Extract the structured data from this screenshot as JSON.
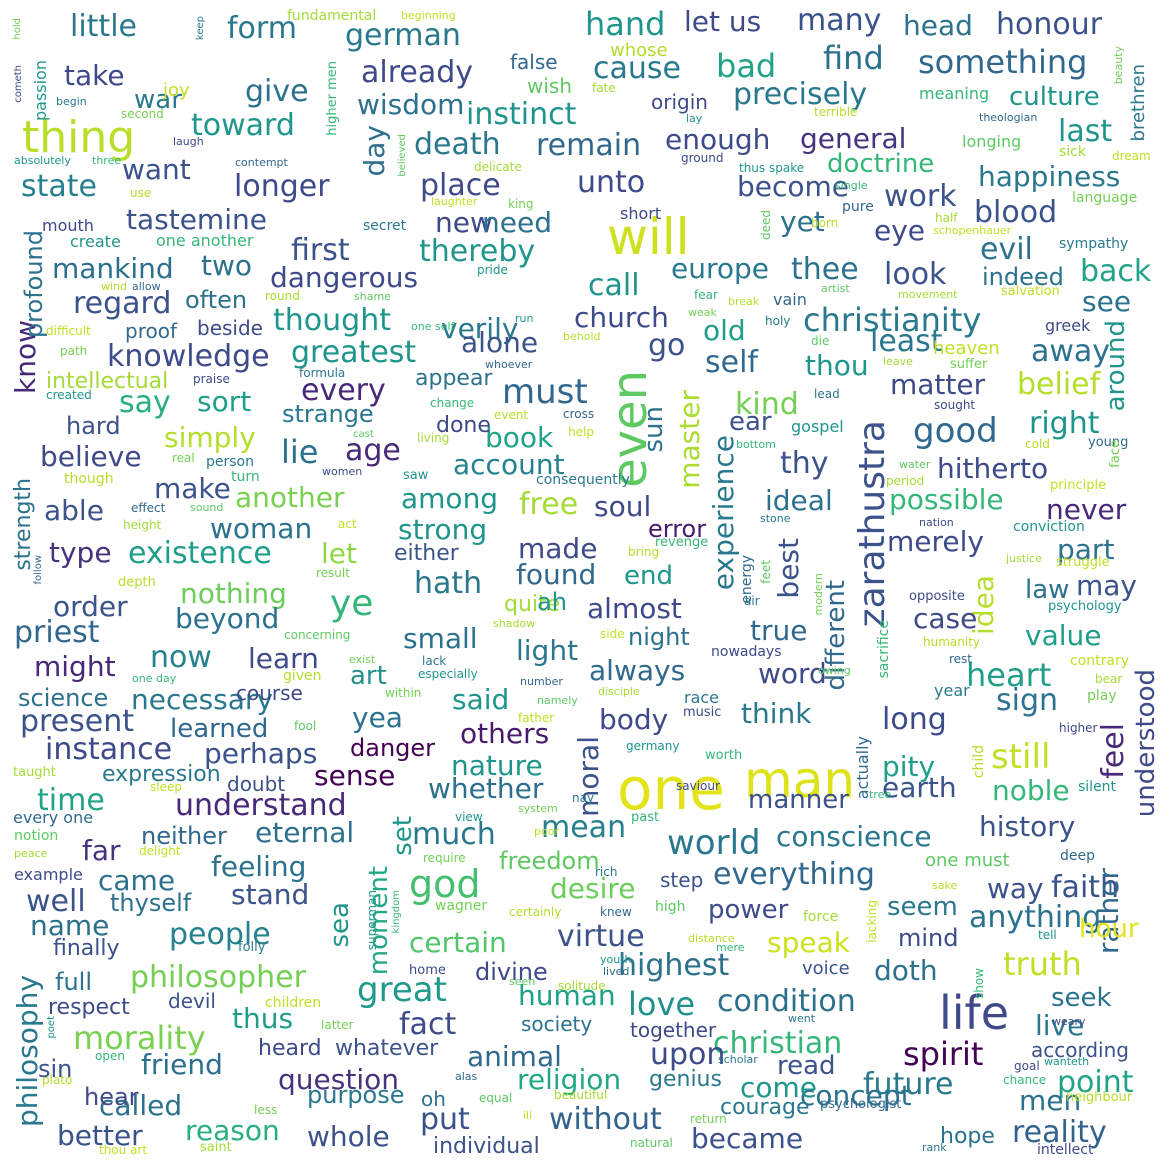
{
  "words": [
    {
      "text": "one",
      "color": "#e3e418"
    },
    {
      "text": "man",
      "color": "#dde318"
    },
    {
      "text": "even",
      "color": "#5ec962"
    },
    {
      "text": "will",
      "color": "#cde11d"
    },
    {
      "text": "zarathustra",
      "color": "#3b528b"
    },
    {
      "text": "life",
      "color": "#3e4a89"
    },
    {
      "text": "thing",
      "color": "#b8de29"
    },
    {
      "text": "ye",
      "color": "#35b779"
    },
    {
      "text": "god",
      "color": "#44bf70"
    },
    {
      "text": "must",
      "color": "#31688e"
    },
    {
      "text": "still",
      "color": "#c2df23"
    },
    {
      "text": "great",
      "color": "#1f9a8a"
    },
    {
      "text": "highest",
      "color": "#2c728e"
    },
    {
      "text": "world",
      "color": "#2a788e"
    },
    {
      "text": "philosopher",
      "color": "#73d055"
    },
    {
      "text": "christianity",
      "color": "#2a788e"
    },
    {
      "text": "greatest",
      "color": "#1f968b"
    },
    {
      "text": "spirit",
      "color": "#440154"
    },
    {
      "text": "love",
      "color": "#21918c"
    },
    {
      "text": "good",
      "color": "#31688e"
    },
    {
      "text": "heart",
      "color": "#1f9e89"
    },
    {
      "text": "everything",
      "color": "#31688e"
    },
    {
      "text": "mean",
      "color": "#27808e"
    },
    {
      "text": "condition",
      "color": "#2d708e"
    },
    {
      "text": "truth",
      "color": "#c0df25"
    },
    {
      "text": "nature",
      "color": "#1f968b"
    },
    {
      "text": "morality",
      "color": "#7ad151"
    },
    {
      "text": "people",
      "color": "#26828e"
    },
    {
      "text": "time",
      "color": "#20a386"
    },
    {
      "text": "understand",
      "color": "#482878"
    },
    {
      "text": "instance",
      "color": "#3e4a89"
    },
    {
      "text": "existence",
      "color": "#1f9e89"
    },
    {
      "text": "present",
      "color": "#3b528b"
    },
    {
      "text": "knowledge",
      "color": "#3e4a89"
    },
    {
      "text": "philosophy",
      "color": "#2a788e"
    },
    {
      "text": "question",
      "color": "#46337e"
    },
    {
      "text": "religion",
      "color": "#22a884"
    },
    {
      "text": "christian",
      "color": "#35b779"
    },
    {
      "text": "reality",
      "color": "#33638d"
    },
    {
      "text": "whole",
      "color": "#3b528b"
    },
    {
      "text": "better",
      "color": "#3b528b"
    },
    {
      "text": "without",
      "color": "#33638d"
    },
    {
      "text": "became",
      "color": "#3b528b"
    },
    {
      "text": "concept",
      "color": "#2c728e"
    },
    {
      "text": "future",
      "color": "#2a788e"
    },
    {
      "text": "point",
      "color": "#20a386"
    },
    {
      "text": "fact",
      "color": "#3e4a89"
    },
    {
      "text": "upon",
      "color": "#3e4a89"
    },
    {
      "text": "animal",
      "color": "#31688e"
    },
    {
      "text": "friend",
      "color": "#2d708e"
    },
    {
      "text": "called",
      "color": "#2c728e"
    },
    {
      "text": "reason",
      "color": "#29af7f"
    },
    {
      "text": "put",
      "color": "#3b528b"
    },
    {
      "text": "thus",
      "color": "#1f9e89"
    },
    {
      "text": "human",
      "color": "#1fa188"
    },
    {
      "text": "virtue",
      "color": "#3b528b"
    },
    {
      "text": "certain",
      "color": "#52c569"
    },
    {
      "text": "speak",
      "color": "#cde11d"
    },
    {
      "text": "power",
      "color": "#3e4a89"
    },
    {
      "text": "desire",
      "color": "#6ccd5a"
    },
    {
      "text": "faith",
      "color": "#3b528b"
    },
    {
      "text": "anything",
      "color": "#2c728e"
    },
    {
      "text": "seem",
      "color": "#2a788e"
    },
    {
      "text": "history",
      "color": "#3b528b"
    },
    {
      "text": "conscience",
      "color": "#2a788e"
    },
    {
      "text": "earth",
      "color": "#3b528b"
    },
    {
      "text": "noble",
      "color": "#35b779"
    },
    {
      "text": "pity",
      "color": "#1f9e89"
    },
    {
      "text": "think",
      "color": "#2a788e"
    },
    {
      "text": "word",
      "color": "#3e4a89"
    },
    {
      "text": "always",
      "color": "#31688e"
    },
    {
      "text": "long",
      "color": "#3e4a89"
    },
    {
      "text": "sign",
      "color": "#2c728e"
    },
    {
      "text": "value",
      "color": "#1f9e89"
    },
    {
      "text": "feel",
      "color": "#482878"
    },
    {
      "text": "understood",
      "color": "#3e4a89"
    },
    {
      "text": "rather",
      "color": "#31688e"
    },
    {
      "text": "idea",
      "color": "#b5de2b"
    },
    {
      "text": "case",
      "color": "#3e4a89"
    },
    {
      "text": "law",
      "color": "#2c728e"
    },
    {
      "text": "may",
      "color": "#3b528b"
    },
    {
      "text": "possible",
      "color": "#35b779"
    },
    {
      "text": "merely",
      "color": "#3e4a89"
    },
    {
      "text": "part",
      "color": "#2c728e"
    },
    {
      "text": "never",
      "color": "#482878"
    },
    {
      "text": "hitherto",
      "color": "#3e4a89"
    },
    {
      "text": "right",
      "color": "#1f968b"
    },
    {
      "text": "thy",
      "color": "#3b528b"
    },
    {
      "text": "ideal",
      "color": "#2c728e"
    },
    {
      "text": "experience",
      "color": "#2a788e"
    },
    {
      "text": "best",
      "color": "#3b528b"
    },
    {
      "text": "true",
      "color": "#31688e"
    },
    {
      "text": "different",
      "color": "#31688e"
    },
    {
      "text": "master",
      "color": "#addc30"
    },
    {
      "text": "moral",
      "color": "#3b528b"
    },
    {
      "text": "body",
      "color": "#3e4a89"
    },
    {
      "text": "others",
      "color": "#481b6d"
    },
    {
      "text": "whether",
      "color": "#2d708e"
    },
    {
      "text": "much",
      "color": "#2a788e"
    },
    {
      "text": "freedom",
      "color": "#5ec962"
    },
    {
      "text": "manner",
      "color": "#3b528b"
    },
    {
      "text": "sense",
      "color": "#440154"
    },
    {
      "text": "yea",
      "color": "#2c728e"
    },
    {
      "text": "said",
      "color": "#1f968b"
    },
    {
      "text": "art",
      "color": "#21918c"
    },
    {
      "text": "learn",
      "color": "#3e4a89"
    },
    {
      "text": "light",
      "color": "#2a788e"
    },
    {
      "text": "small",
      "color": "#2c728e"
    },
    {
      "text": "found",
      "color": "#31688e"
    },
    {
      "text": "made",
      "color": "#3e4a89"
    },
    {
      "text": "strong",
      "color": "#1f968b"
    },
    {
      "text": "free",
      "color": "#a5db36"
    },
    {
      "text": "soul",
      "color": "#3e4a89"
    },
    {
      "text": "among",
      "color": "#1f968b"
    },
    {
      "text": "account",
      "color": "#26828e"
    },
    {
      "text": "book",
      "color": "#20a386"
    },
    {
      "text": "age",
      "color": "#482878"
    },
    {
      "text": "lie",
      "color": "#2c728e"
    },
    {
      "text": "simply",
      "color": "#b5de2b"
    },
    {
      "text": "sort",
      "color": "#1f9e89"
    },
    {
      "text": "every",
      "color": "#482878"
    },
    {
      "text": "say",
      "color": "#29af7f"
    },
    {
      "text": "know",
      "color": "#482878"
    },
    {
      "text": "believe",
      "color": "#3e4a89"
    },
    {
      "text": "make",
      "color": "#3b528b"
    },
    {
      "text": "another",
      "color": "#7ad151"
    },
    {
      "text": "able",
      "color": "#3b528b"
    },
    {
      "text": "woman",
      "color": "#2c728e"
    },
    {
      "text": "type",
      "color": "#46337e"
    },
    {
      "text": "nothing",
      "color": "#6ccd5a"
    },
    {
      "text": "beyond",
      "color": "#2c728e"
    },
    {
      "text": "order",
      "color": "#3b528b"
    },
    {
      "text": "priest",
      "color": "#31688e"
    },
    {
      "text": "might",
      "color": "#482878"
    },
    {
      "text": "now",
      "color": "#26828e"
    },
    {
      "text": "necessary",
      "color": "#2a788e"
    },
    {
      "text": "perhaps",
      "color": "#3b528b"
    },
    {
      "text": "far",
      "color": "#46337e"
    },
    {
      "text": "feeling",
      "color": "#2c728e"
    },
    {
      "text": "stand",
      "color": "#3b528b"
    },
    {
      "text": "came",
      "color": "#2c728e"
    },
    {
      "text": "well",
      "color": "#3b528b"
    },
    {
      "text": "name",
      "color": "#2d708e"
    },
    {
      "text": "thyself",
      "color": "#2c728e"
    },
    {
      "text": "eternal",
      "color": "#2d708e"
    },
    {
      "text": "neither",
      "color": "#31688e"
    },
    {
      "text": "set",
      "color": "#1f968b"
    },
    {
      "text": "moment",
      "color": "#22a884"
    },
    {
      "text": "sea",
      "color": "#1f968b"
    },
    {
      "text": "thought",
      "color": "#1f968b"
    },
    {
      "text": "verily",
      "color": "#2a788e"
    },
    {
      "text": "dangerous",
      "color": "#3e4a89"
    },
    {
      "text": "first",
      "color": "#3b528b"
    },
    {
      "text": "regard",
      "color": "#3b528b"
    },
    {
      "text": "mankind",
      "color": "#2d708e"
    },
    {
      "text": "two",
      "color": "#2d708e"
    },
    {
      "text": "thereby",
      "color": "#1f968b"
    },
    {
      "text": "place",
      "color": "#3e4a89"
    },
    {
      "text": "new",
      "color": "#3e4a89"
    },
    {
      "text": "need",
      "color": "#2c728e"
    },
    {
      "text": "state",
      "color": "#27808e"
    },
    {
      "text": "longer",
      "color": "#3e4a89"
    },
    {
      "text": "want",
      "color": "#3b528b"
    },
    {
      "text": "tastemine",
      "color": "#3b528b"
    },
    {
      "text": "death",
      "color": "#2a788e"
    },
    {
      "text": "remain",
      "color": "#31688e"
    },
    {
      "text": "instinct",
      "color": "#1f968b"
    },
    {
      "text": "wisdom",
      "color": "#2c728e"
    },
    {
      "text": "already",
      "color": "#3e4a89"
    },
    {
      "text": "german",
      "color": "#2a788e"
    },
    {
      "text": "form",
      "color": "#2a788e"
    },
    {
      "text": "little",
      "color": "#2a788e"
    },
    {
      "text": "take",
      "color": "#3e4a89"
    },
    {
      "text": "give",
      "color": "#2c728e"
    },
    {
      "text": "toward",
      "color": "#1f968b"
    },
    {
      "text": "war",
      "color": "#2a788e"
    },
    {
      "text": "hand",
      "color": "#1f968b"
    },
    {
      "text": "cause",
      "color": "#2a788e"
    },
    {
      "text": "let us",
      "color": "#3e4a89"
    },
    {
      "text": "bad",
      "color": "#20a386"
    },
    {
      "text": "many",
      "color": "#3b528b"
    },
    {
      "text": "find",
      "color": "#2c728e"
    },
    {
      "text": "head",
      "color": "#2c728e"
    },
    {
      "text": "honour",
      "color": "#3b528b"
    },
    {
      "text": "something",
      "color": "#31688e"
    },
    {
      "text": "precisely",
      "color": "#2a788e"
    },
    {
      "text": "culture",
      "color": "#1f968b"
    },
    {
      "text": "general",
      "color": "#46337e"
    },
    {
      "text": "enough",
      "color": "#3e4a89"
    },
    {
      "text": "unto",
      "color": "#3e4a89"
    },
    {
      "text": "day",
      "color": "#2d708e"
    },
    {
      "text": "become",
      "color": "#3b528b"
    },
    {
      "text": "doctrine",
      "color": "#35b779"
    },
    {
      "text": "happiness",
      "color": "#2a788e"
    },
    {
      "text": "last",
      "color": "#1f968b"
    },
    {
      "text": "work",
      "color": "#3b528b"
    },
    {
      "text": "blood",
      "color": "#3b528b"
    },
    {
      "text": "yet",
      "color": "#2d708e"
    },
    {
      "text": "europe",
      "color": "#2a788e"
    },
    {
      "text": "thee",
      "color": "#2c728e"
    },
    {
      "text": "eye",
      "color": "#3e4a89"
    },
    {
      "text": "evil",
      "color": "#2c728e"
    },
    {
      "text": "look",
      "color": "#3b528b"
    },
    {
      "text": "back",
      "color": "#20a386"
    },
    {
      "text": "call",
      "color": "#1f968b"
    },
    {
      "text": "indeed",
      "color": "#2c728e"
    },
    {
      "text": "church",
      "color": "#3e4a89"
    },
    {
      "text": "see",
      "color": "#2c728e"
    },
    {
      "text": "old",
      "color": "#1f9e89"
    },
    {
      "text": "least",
      "color": "#2a788e"
    },
    {
      "text": "self",
      "color": "#31688e"
    },
    {
      "text": "thou",
      "color": "#1f968b"
    },
    {
      "text": "matter",
      "color": "#3e4a89"
    },
    {
      "text": "away",
      "color": "#2c728e"
    },
    {
      "text": "belief",
      "color": "#b5de2b"
    },
    {
      "text": "around",
      "color": "#1f968b"
    },
    {
      "text": "alone",
      "color": "#3b528b"
    },
    {
      "text": "go",
      "color": "#3b528b"
    },
    {
      "text": "kind",
      "color": "#73d055"
    },
    {
      "text": "ear",
      "color": "#3b528b"
    },
    {
      "text": "almost",
      "color": "#3e4a89"
    },
    {
      "text": "end",
      "color": "#1f968b"
    },
    {
      "text": "sun",
      "color": "#2c728e"
    },
    {
      "text": "hath",
      "color": "#2a788e"
    },
    {
      "text": "let",
      "color": "#8fd744"
    },
    {
      "text": "error",
      "color": "#481b6d"
    },
    {
      "text": "either",
      "color": "#3b528b"
    },
    {
      "text": "quite",
      "color": "#a5db36"
    },
    {
      "text": "ah",
      "color": "#1f968b"
    },
    {
      "text": "night",
      "color": "#2c728e"
    },
    {
      "text": "done",
      "color": "#3e4a89"
    },
    {
      "text": "appear",
      "color": "#2c728e"
    },
    {
      "text": "strange",
      "color": "#2a788e"
    },
    {
      "text": "hard",
      "color": "#3b528b"
    },
    {
      "text": "often",
      "color": "#2c728e"
    },
    {
      "text": "beside",
      "color": "#3e4a89"
    },
    {
      "text": "proof",
      "color": "#31688e"
    },
    {
      "text": "profound",
      "color": "#2c728e"
    },
    {
      "text": "intellectual",
      "color": "#a5db36"
    },
    {
      "text": "science",
      "color": "#2c728e"
    },
    {
      "text": "learned",
      "color": "#31688e"
    },
    {
      "text": "danger",
      "color": "#440154"
    },
    {
      "text": "expression",
      "color": "#2a788e"
    },
    {
      "text": "doubt",
      "color": "#3b528b"
    },
    {
      "text": "course",
      "color": "#3e4a89"
    },
    {
      "text": "strength",
      "color": "#2c728e"
    },
    {
      "text": "full",
      "color": "#2c728e"
    },
    {
      "text": "respect",
      "color": "#3e4a89"
    },
    {
      "text": "finally",
      "color": "#3b528b"
    },
    {
      "text": "devil",
      "color": "#3b528b"
    },
    {
      "text": "divine",
      "color": "#3e4a89"
    },
    {
      "text": "sin",
      "color": "#3b528b"
    },
    {
      "text": "hear",
      "color": "#3e4a89"
    },
    {
      "text": "purpose",
      "color": "#2a788e"
    },
    {
      "text": "oh",
      "color": "#2c728e"
    },
    {
      "text": "individual",
      "color": "#3b528b"
    },
    {
      "text": "heard",
      "color": "#3e4a89"
    },
    {
      "text": "whatever",
      "color": "#3b528b"
    },
    {
      "text": "society",
      "color": "#2c728e"
    },
    {
      "text": "genius",
      "color": "#2a788e"
    },
    {
      "text": "together",
      "color": "#3e4a89"
    },
    {
      "text": "come",
      "color": "#1f968b"
    },
    {
      "text": "courage",
      "color": "#2a788e"
    },
    {
      "text": "read",
      "color": "#3b528b"
    },
    {
      "text": "men",
      "color": "#2c728e"
    },
    {
      "text": "according",
      "color": "#3b528b"
    },
    {
      "text": "live",
      "color": "#2a788e"
    },
    {
      "text": "seek",
      "color": "#2c728e"
    },
    {
      "text": "doth",
      "color": "#2c728e"
    },
    {
      "text": "mind",
      "color": "#3e4a89"
    },
    {
      "text": "hope",
      "color": "#2c728e"
    },
    {
      "text": "way",
      "color": "#3b528b"
    },
    {
      "text": "step",
      "color": "#3b528b"
    },
    {
      "text": "voice",
      "color": "#3b528b"
    },
    {
      "text": "hour",
      "color": "#e3e418"
    }
  ],
  "smallwords": [
    "fundamental",
    "beginning",
    "hold",
    "keep",
    "cometh",
    "passion",
    "higher men",
    "whose",
    "false",
    "wish",
    "fate",
    "joy",
    "second",
    "begin",
    "laugh",
    "absolutely",
    "three",
    "use",
    "contempt",
    "believed",
    "delicate",
    "laughter",
    "king",
    "secret",
    "mouth",
    "create",
    "one another",
    "wind",
    "allow",
    "shame",
    "round",
    "difficult",
    "path",
    "formula",
    "praise",
    "created",
    "change",
    "event",
    "cross",
    "cast",
    "living",
    "help",
    "real",
    "person",
    "women",
    "saw",
    "turn",
    "though",
    "effect",
    "sound",
    "height",
    "act",
    "result",
    "consequently",
    "origin",
    "lay",
    "meaning",
    "terrible",
    "theologian",
    "longing",
    "sick",
    "dream",
    "beauty",
    "brethren",
    "ground",
    "thus spake",
    "single",
    "born",
    "pure",
    "deed",
    "half",
    "schopenhauer",
    "language",
    "sympathy",
    "short",
    "pride",
    "fear",
    "break",
    "vain",
    "artist",
    "movement",
    "salvation",
    "weak",
    "holy",
    "greek",
    "run",
    "one self",
    "behold",
    "whoever",
    "die",
    "leave",
    "heaven",
    "suffer",
    "lead",
    "sought",
    "gospel",
    "bottom",
    "cold",
    "young",
    "water",
    "period",
    "principle",
    "face",
    "stone",
    "nation",
    "conviction",
    "revenge",
    "bring",
    "energy",
    "feet",
    "justice",
    "struggle",
    "modern",
    "air",
    "opposite",
    "psychology",
    "sacrifice",
    "humanity",
    "rest",
    "owing",
    "bear",
    "contrary",
    "play",
    "year",
    "higher",
    "silent",
    "tree",
    "depth",
    "follow",
    "concerning",
    "shadow",
    "side",
    "exist",
    "lack",
    "nowadays",
    "especially",
    "one day",
    "given",
    "number",
    "namely",
    "disciple",
    "father",
    "within",
    "race",
    "music",
    "germany",
    "worth",
    "child",
    "actually",
    "fool",
    "taught",
    "sleep",
    "system",
    "nay",
    "saviour",
    "view",
    "past",
    "poor",
    "every one",
    "notion",
    "peace",
    "delight",
    "require",
    "rich",
    "example",
    "superman",
    "kingdom",
    "certainly",
    "knew",
    "high",
    "force",
    "lacking",
    "wagner",
    "folly",
    "home",
    "youth",
    "mere",
    "distance",
    "lived",
    "seen",
    "solitude",
    "children",
    "latter",
    "went",
    "weary",
    "poet",
    "open",
    "plato",
    "alas",
    "equal",
    "beautiful",
    "ill",
    "return",
    "scholar",
    "goal",
    "wanteth",
    "chance",
    "neighbour",
    "psychologist",
    "natural",
    "saint",
    "thou art",
    "less",
    "rank",
    "intellect",
    "tell",
    "show",
    "sake",
    "deep",
    "one must"
  ]
}
